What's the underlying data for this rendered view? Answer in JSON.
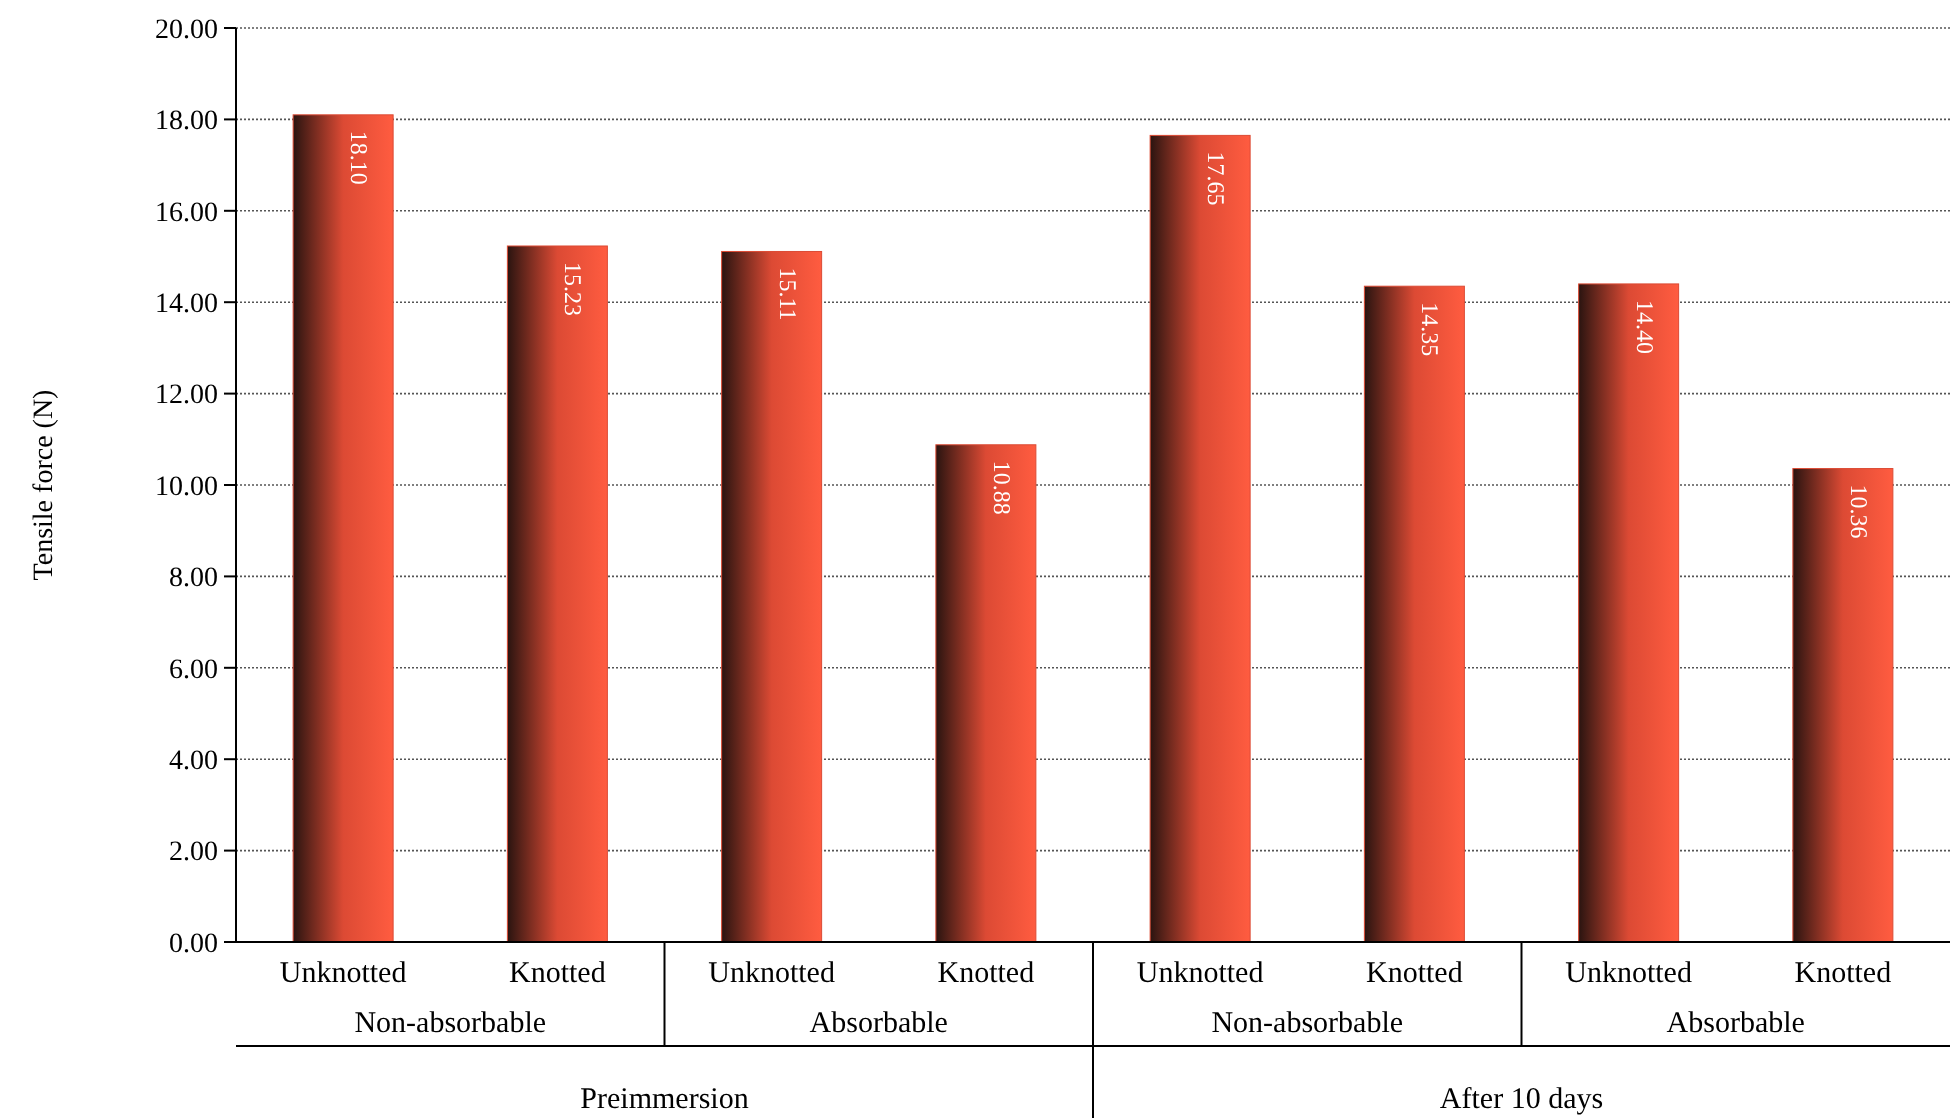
{
  "chart_data": {
    "type": "bar",
    "ylabel": "Tensile force (N)",
    "categories": [
      "Unknotted",
      "Knotted",
      "Unknotted",
      "Knotted",
      "Unknotted",
      "Knotted",
      "Unknotted",
      "Knotted"
    ],
    "values": [
      18.1,
      15.23,
      15.11,
      10.88,
      17.65,
      14.35,
      14.4,
      10.36
    ],
    "value_labels": [
      "18.10",
      "15.23",
      "15.11",
      "10.88",
      "17.65",
      "14.35",
      "14.40",
      "10.36"
    ],
    "color": "#dc4a34",
    "ylim": [
      0,
      20
    ],
    "yticks": [
      {
        "value": 0,
        "label": "0.00"
      },
      {
        "value": 2,
        "label": "2.00"
      },
      {
        "value": 4,
        "label": "4.00"
      },
      {
        "value": 6,
        "label": "6.00"
      },
      {
        "value": 8,
        "label": "8.00"
      },
      {
        "value": 10,
        "label": "10.00"
      },
      {
        "value": 12,
        "label": "12.00"
      },
      {
        "value": 14,
        "label": "14.00"
      },
      {
        "value": 16,
        "label": "16.00"
      },
      {
        "value": 18,
        "label": "18.00"
      },
      {
        "value": 20,
        "label": "20.00"
      }
    ],
    "grid": "y",
    "annotations": [
      "Non-absorbable",
      "Absorbable",
      "Non-absorbable",
      "Absorbable",
      "Preimmersion",
      "After 10 days"
    ]
  }
}
